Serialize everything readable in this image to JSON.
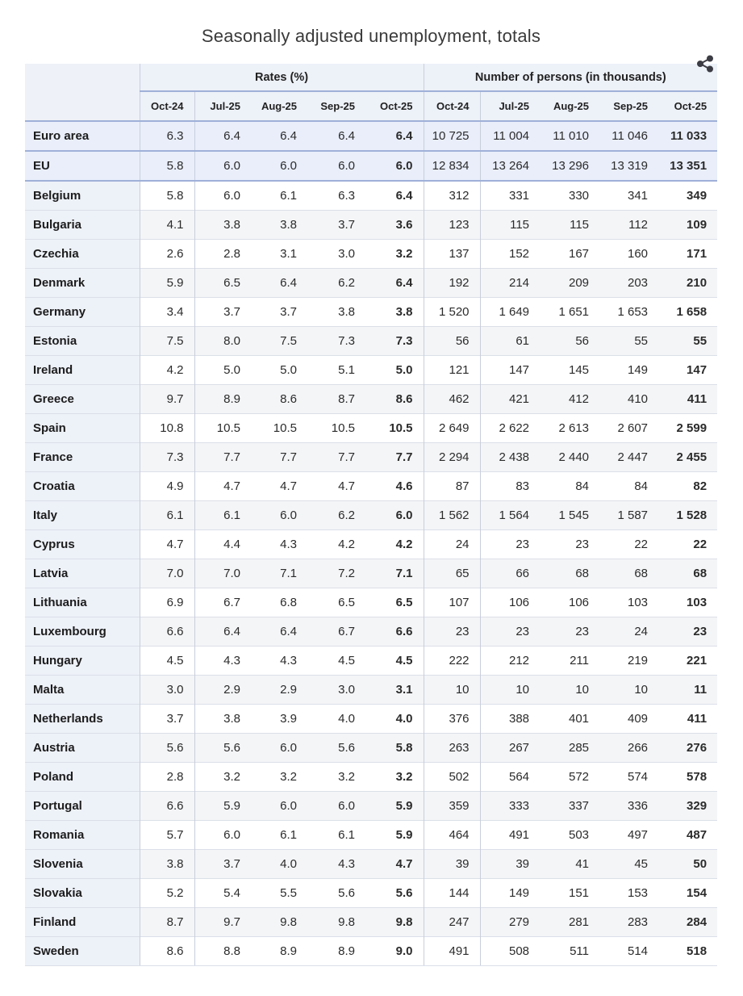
{
  "chart_data": {
    "type": "table",
    "title": "Seasonally adjusted unemployment, totals",
    "col_groups": [
      "Rates (%)",
      "Number of persons (in thousands)"
    ],
    "months": [
      "Oct-24",
      "Jul-25",
      "Aug-25",
      "Sep-25",
      "Oct-25"
    ],
    "rows": [
      {
        "label": "Euro area",
        "kind": "aggregate",
        "rates": [
          "6.3",
          "6.4",
          "6.4",
          "6.4",
          "6.4"
        ],
        "persons": [
          "10 725",
          "11 004",
          "11 010",
          "11 046",
          "11 033"
        ]
      },
      {
        "label": "EU",
        "kind": "aggregate",
        "rates": [
          "5.8",
          "6.0",
          "6.0",
          "6.0",
          "6.0"
        ],
        "persons": [
          "12 834",
          "13 264",
          "13 296",
          "13 319",
          "13 351"
        ]
      },
      {
        "label": "Belgium",
        "kind": "country",
        "rates": [
          "5.8",
          "6.0",
          "6.1",
          "6.3",
          "6.4"
        ],
        "persons": [
          "312",
          "331",
          "330",
          "341",
          "349"
        ]
      },
      {
        "label": "Bulgaria",
        "kind": "country",
        "rates": [
          "4.1",
          "3.8",
          "3.8",
          "3.7",
          "3.6"
        ],
        "persons": [
          "123",
          "115",
          "115",
          "112",
          "109"
        ]
      },
      {
        "label": "Czechia",
        "kind": "country",
        "rates": [
          "2.6",
          "2.8",
          "3.1",
          "3.0",
          "3.2"
        ],
        "persons": [
          "137",
          "152",
          "167",
          "160",
          "171"
        ]
      },
      {
        "label": "Denmark",
        "kind": "country",
        "rates": [
          "5.9",
          "6.5",
          "6.4",
          "6.2",
          "6.4"
        ],
        "persons": [
          "192",
          "214",
          "209",
          "203",
          "210"
        ]
      },
      {
        "label": "Germany",
        "kind": "country",
        "rates": [
          "3.4",
          "3.7",
          "3.7",
          "3.8",
          "3.8"
        ],
        "persons": [
          "1 520",
          "1 649",
          "1 651",
          "1 653",
          "1 658"
        ]
      },
      {
        "label": "Estonia",
        "kind": "country",
        "rates": [
          "7.5",
          "8.0",
          "7.5",
          "7.3",
          "7.3"
        ],
        "persons": [
          "56",
          "61",
          "56",
          "55",
          "55"
        ]
      },
      {
        "label": "Ireland",
        "kind": "country",
        "rates": [
          "4.2",
          "5.0",
          "5.0",
          "5.1",
          "5.0"
        ],
        "persons": [
          "121",
          "147",
          "145",
          "149",
          "147"
        ]
      },
      {
        "label": "Greece",
        "kind": "country",
        "rates": [
          "9.7",
          "8.9",
          "8.6",
          "8.7",
          "8.6"
        ],
        "persons": [
          "462",
          "421",
          "412",
          "410",
          "411"
        ]
      },
      {
        "label": "Spain",
        "kind": "country",
        "rates": [
          "10.8",
          "10.5",
          "10.5",
          "10.5",
          "10.5"
        ],
        "persons": [
          "2 649",
          "2 622",
          "2 613",
          "2 607",
          "2 599"
        ]
      },
      {
        "label": "France",
        "kind": "country",
        "rates": [
          "7.3",
          "7.7",
          "7.7",
          "7.7",
          "7.7"
        ],
        "persons": [
          "2 294",
          "2 438",
          "2 440",
          "2 447",
          "2 455"
        ]
      },
      {
        "label": "Croatia",
        "kind": "country",
        "rates": [
          "4.9",
          "4.7",
          "4.7",
          "4.7",
          "4.6"
        ],
        "persons": [
          "87",
          "83",
          "84",
          "84",
          "82"
        ]
      },
      {
        "label": "Italy",
        "kind": "country",
        "rates": [
          "6.1",
          "6.1",
          "6.0",
          "6.2",
          "6.0"
        ],
        "persons": [
          "1 562",
          "1 564",
          "1 545",
          "1 587",
          "1 528"
        ]
      },
      {
        "label": "Cyprus",
        "kind": "country",
        "rates": [
          "4.7",
          "4.4",
          "4.3",
          "4.2",
          "4.2"
        ],
        "persons": [
          "24",
          "23",
          "23",
          "22",
          "22"
        ]
      },
      {
        "label": "Latvia",
        "kind": "country",
        "rates": [
          "7.0",
          "7.0",
          "7.1",
          "7.2",
          "7.1"
        ],
        "persons": [
          "65",
          "66",
          "68",
          "68",
          "68"
        ]
      },
      {
        "label": "Lithuania",
        "kind": "country",
        "rates": [
          "6.9",
          "6.7",
          "6.8",
          "6.5",
          "6.5"
        ],
        "persons": [
          "107",
          "106",
          "106",
          "103",
          "103"
        ]
      },
      {
        "label": "Luxembourg",
        "kind": "country",
        "rates": [
          "6.6",
          "6.4",
          "6.4",
          "6.7",
          "6.6"
        ],
        "persons": [
          "23",
          "23",
          "23",
          "24",
          "23"
        ]
      },
      {
        "label": "Hungary",
        "kind": "country",
        "rates": [
          "4.5",
          "4.3",
          "4.3",
          "4.5",
          "4.5"
        ],
        "persons": [
          "222",
          "212",
          "211",
          "219",
          "221"
        ]
      },
      {
        "label": "Malta",
        "kind": "country",
        "rates": [
          "3.0",
          "2.9",
          "2.9",
          "3.0",
          "3.1"
        ],
        "persons": [
          "10",
          "10",
          "10",
          "10",
          "11"
        ]
      },
      {
        "label": "Netherlands",
        "kind": "country",
        "rates": [
          "3.7",
          "3.8",
          "3.9",
          "4.0",
          "4.0"
        ],
        "persons": [
          "376",
          "388",
          "401",
          "409",
          "411"
        ]
      },
      {
        "label": "Austria",
        "kind": "country",
        "rates": [
          "5.6",
          "5.6",
          "6.0",
          "5.6",
          "5.8"
        ],
        "persons": [
          "263",
          "267",
          "285",
          "266",
          "276"
        ]
      },
      {
        "label": "Poland",
        "kind": "country",
        "rates": [
          "2.8",
          "3.2",
          "3.2",
          "3.2",
          "3.2"
        ],
        "persons": [
          "502",
          "564",
          "572",
          "574",
          "578"
        ]
      },
      {
        "label": "Portugal",
        "kind": "country",
        "rates": [
          "6.6",
          "5.9",
          "6.0",
          "6.0",
          "5.9"
        ],
        "persons": [
          "359",
          "333",
          "337",
          "336",
          "329"
        ]
      },
      {
        "label": "Romania",
        "kind": "country",
        "rates": [
          "5.7",
          "6.0",
          "6.1",
          "6.1",
          "5.9"
        ],
        "persons": [
          "464",
          "491",
          "503",
          "497",
          "487"
        ]
      },
      {
        "label": "Slovenia",
        "kind": "country",
        "rates": [
          "3.8",
          "3.7",
          "4.0",
          "4.3",
          "4.7"
        ],
        "persons": [
          "39",
          "39",
          "41",
          "45",
          "50"
        ]
      },
      {
        "label": "Slovakia",
        "kind": "country",
        "rates": [
          "5.2",
          "5.4",
          "5.5",
          "5.6",
          "5.6"
        ],
        "persons": [
          "144",
          "149",
          "151",
          "153",
          "154"
        ]
      },
      {
        "label": "Finland",
        "kind": "country",
        "rates": [
          "8.7",
          "9.7",
          "9.8",
          "9.8",
          "9.8"
        ],
        "persons": [
          "247",
          "279",
          "281",
          "283",
          "284"
        ]
      },
      {
        "label": "Sweden",
        "kind": "country",
        "rates": [
          "8.6",
          "8.8",
          "8.9",
          "8.9",
          "9.0"
        ],
        "persons": [
          "491",
          "508",
          "511",
          "514",
          "518"
        ]
      }
    ],
    "layout_hints": {
      "latest_column_bold": "Oct-25",
      "aggregate_rows_highlighted": [
        "Euro area",
        "EU"
      ],
      "thousands_separator": "space"
    }
  },
  "ui": {
    "share_icon": "share-icon",
    "colors": {
      "accent_line": "#9fb0d8",
      "header_bg": "#edf1f8",
      "aggregate_row_bg": "#e9eefa",
      "stripe_row_bg": "#f4f5f7",
      "vertical_border": "#c8cedb",
      "row_border": "#dbdfe8",
      "icon_color": "#3c3c44",
      "text": "#2e2e2e"
    }
  }
}
